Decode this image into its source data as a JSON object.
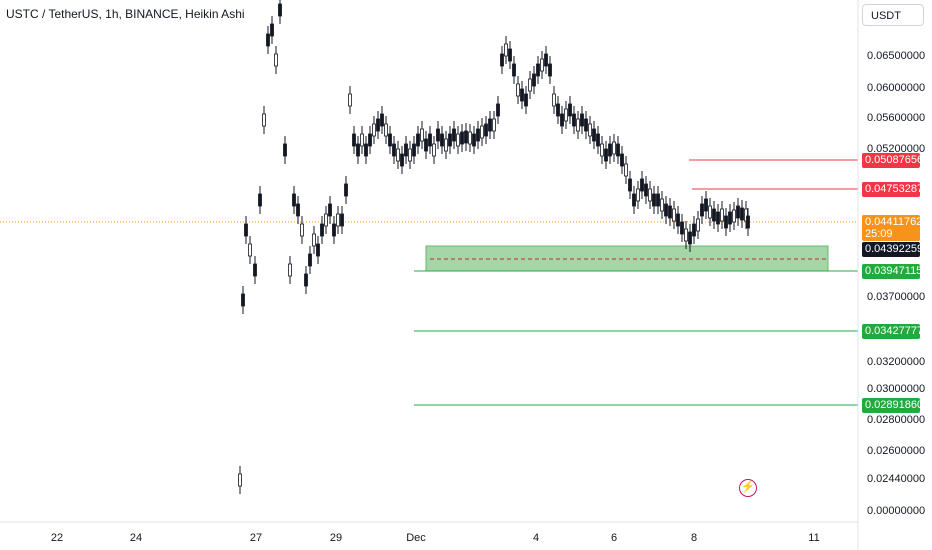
{
  "header": {
    "title": "USTC / TetherUS, 1h, BINANCE, Heikin Ashi",
    "currency": "USDT"
  },
  "price_axis": {
    "ticks": [
      "0.06500000",
      "0.06000000",
      "0.05600000",
      "0.05200000",
      "0.03700000",
      "0.03200000",
      "0.03000000",
      "0.02800000",
      "0.02600000",
      "0.02440000",
      "0.00000000"
    ]
  },
  "time_axis": {
    "ticks": [
      "22",
      "24",
      "27",
      "29",
      "Dec",
      "4",
      "6",
      "8",
      "11"
    ]
  },
  "badges": {
    "resistance_1": "0.05087656",
    "resistance_2": "0.04753287",
    "last_price": "0.04411762",
    "countdown": "25:09",
    "current": "0.04392259",
    "support_1": "0.03947115",
    "support_2": "0.03427777",
    "support_3": "0.02891860"
  },
  "colors": {
    "resistance": "#f23645",
    "support": "#22ab3c",
    "candle": "#131722",
    "zone": "#a5d6a7",
    "last_price_line": "#f7931a"
  },
  "chart_data": {
    "type": "candlestick",
    "style": "Heikin Ashi",
    "symbol": "USTC / TetherUS",
    "interval": "1h",
    "exchange": "BINANCE",
    "x": [
      "22",
      "24",
      "27",
      "29",
      "Dec",
      "4",
      "6",
      "8"
    ],
    "close": [
      0.0244,
      0.0244,
      0.062,
      0.055,
      0.0535,
      0.064,
      0.0462,
      0.0441
    ],
    "high_levels": [
      0.05087656,
      0.04753287
    ],
    "support_levels": [
      0.03947115,
      0.03427777,
      0.0289186
    ],
    "support_zone": [
      0.0395,
      0.0413
    ],
    "last_price": 0.04411762,
    "current_price": 0.04392259
  }
}
